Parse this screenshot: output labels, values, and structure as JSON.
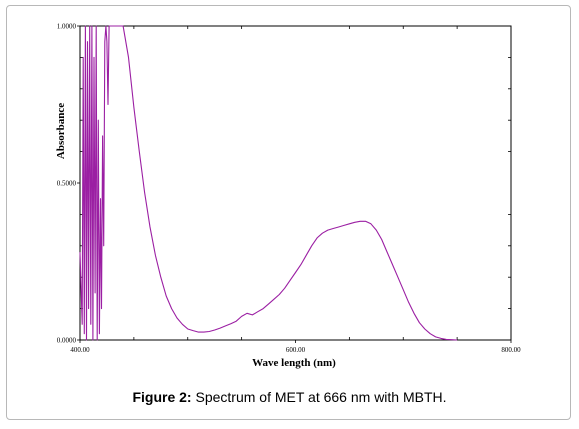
{
  "chart_data": {
    "type": "line",
    "title": "",
    "xlabel": "Wave length (nm)",
    "ylabel": "Absorbance",
    "xlim": [
      400,
      800
    ],
    "ylim": [
      0,
      1
    ],
    "x_ticks": [
      400,
      600,
      800
    ],
    "x_tick_labels": [
      "400.00",
      "600.00",
      "800.00"
    ],
    "y_ticks": [
      0,
      0.5,
      1
    ],
    "y_tick_labels": [
      "0.0000",
      "0.5000",
      "1.0000"
    ],
    "grid": false,
    "legend": false,
    "line_color": "#9b1fa3",
    "series": [
      {
        "x": [
          400,
          402,
          403,
          404,
          405,
          406,
          407,
          408,
          409,
          410,
          411,
          412,
          413,
          414,
          415,
          416,
          417,
          418,
          419,
          420,
          421,
          422,
          423,
          424,
          425,
          426,
          427,
          428,
          429,
          430,
          432,
          434,
          436,
          438,
          440,
          445,
          450,
          455,
          460,
          465,
          470,
          475,
          480,
          485,
          490,
          495,
          500,
          505,
          510,
          515,
          520,
          525,
          530,
          535,
          540,
          545,
          550,
          555,
          560,
          565,
          570,
          575,
          580,
          585,
          590,
          595,
          600,
          605,
          610,
          615,
          620,
          625,
          630,
          635,
          640,
          645,
          650,
          655,
          660,
          665,
          670,
          675,
          680,
          685,
          690,
          695,
          700,
          705,
          710,
          715,
          720,
          725,
          730,
          735,
          740,
          745,
          750
        ],
        "y": [
          0.28,
          0.05,
          0.9,
          0.02,
          1.0,
          0.0,
          0.95,
          0.1,
          1.0,
          0.05,
          1.0,
          0.0,
          0.9,
          0.15,
          1.0,
          0.0,
          0.7,
          0.02,
          0.45,
          0.1,
          0.65,
          0.3,
          0.95,
          1.0,
          0.95,
          0.75,
          1.0,
          1.0,
          1.0,
          1.0,
          1.0,
          1.0,
          1.0,
          1.0,
          1.0,
          0.9,
          0.74,
          0.6,
          0.47,
          0.36,
          0.27,
          0.2,
          0.14,
          0.1,
          0.07,
          0.05,
          0.035,
          0.03,
          0.025,
          0.025,
          0.027,
          0.032,
          0.038,
          0.045,
          0.052,
          0.06,
          0.075,
          0.085,
          0.08,
          0.09,
          0.1,
          0.115,
          0.13,
          0.145,
          0.165,
          0.19,
          0.215,
          0.24,
          0.27,
          0.3,
          0.325,
          0.34,
          0.35,
          0.355,
          0.36,
          0.365,
          0.37,
          0.375,
          0.378,
          0.378,
          0.37,
          0.35,
          0.32,
          0.28,
          0.24,
          0.2,
          0.16,
          0.12,
          0.085,
          0.055,
          0.035,
          0.02,
          0.01,
          0.005,
          0.002,
          0.001,
          0.0
        ]
      }
    ]
  },
  "caption": {
    "label": "Figure 2:",
    "text": " Spectrum of MET at 666 nm with MBTH."
  }
}
